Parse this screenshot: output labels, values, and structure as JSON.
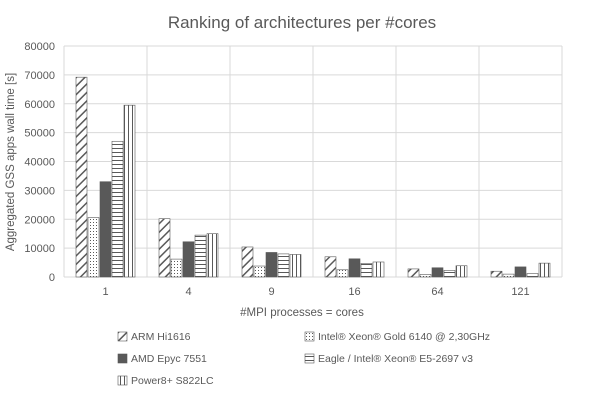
{
  "chart_data": {
    "type": "bar",
    "title": "Ranking of architectures per #cores",
    "xlabel": "#MPI processes = cores",
    "ylabel": "Aggregated GSS apps wall time [s]",
    "categories": [
      "1",
      "4",
      "9",
      "16",
      "64",
      "121"
    ],
    "ylim": [
      0,
      80000
    ],
    "yticks": [
      0,
      10000,
      20000,
      30000,
      40000,
      50000,
      60000,
      70000,
      80000
    ],
    "grid": "horizontal",
    "legend_position": "bottom",
    "series": [
      {
        "name": "ARM Hi1616",
        "pattern": "diagonal-hatch",
        "values": [
          69200,
          20200,
          10400,
          7000,
          2800,
          2000
        ]
      },
      {
        "name": "Intel® Xeon® Gold 6140 @ 2,30GHz",
        "pattern": "dotted",
        "values": [
          20600,
          6200,
          3800,
          2500,
          900,
          1000
        ]
      },
      {
        "name": "AMD Epyc 7551",
        "pattern": "solid-gray",
        "values": [
          33000,
          12200,
          8500,
          6300,
          3200,
          3500
        ]
      },
      {
        "name": "Eagle / Intel® Xeon® E5-2697 v3",
        "pattern": "horizontal-hatch",
        "values": [
          47000,
          14500,
          8000,
          4700,
          2300,
          1200
        ]
      },
      {
        "name": "Power8+ S822LC",
        "pattern": "vertical-hatch",
        "values": [
          59500,
          15000,
          7800,
          5200,
          3900,
          4800
        ]
      }
    ],
    "colors": {
      "ink": "#595959",
      "grid": "#d9d9d9",
      "fill_dark": "#595959",
      "background": "#ffffff"
    }
  }
}
